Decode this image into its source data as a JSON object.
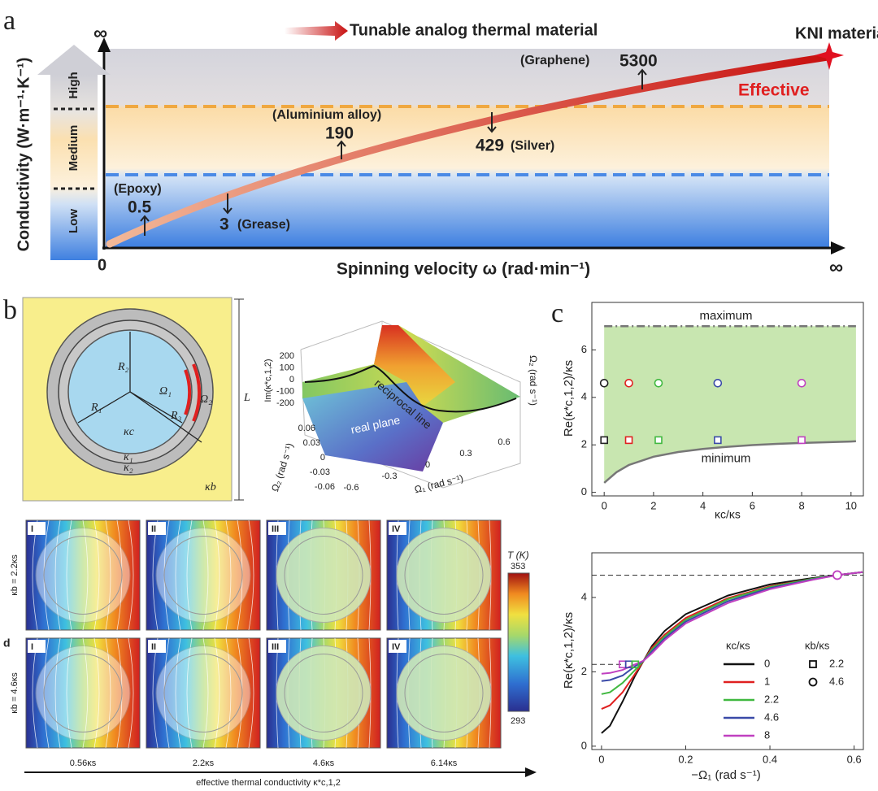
{
  "panel_a": {
    "label": "a",
    "title": "Tunable analog thermal material",
    "corner_label": "KNI material",
    "effective": "Effective",
    "y_label": "Conductivity (W·m⁻¹·K⁻¹)",
    "x_label": "Spinning velocity ω (rad·min⁻¹)",
    "origin": 0,
    "infinity_y": "∞",
    "infinity_x": "∞",
    "levels": [
      "High",
      "Medium",
      "Low"
    ],
    "materials": [
      {
        "name": "(Graphene)",
        "value": 5300
      },
      {
        "name": "(Aluminium alloy)",
        "value": 190
      },
      {
        "name": "(Silver)",
        "value": 429
      },
      {
        "name": "(Epoxy)",
        "value": 0.5
      },
      {
        "name": "(Grease)",
        "value": 3
      }
    ]
  },
  "panel_b": {
    "label": "b",
    "schematic": {
      "R1": "R₁",
      "R2": "R₂",
      "R3": "R₃",
      "omega1": "Ω₁",
      "omega2": "Ω₂",
      "kc": "κc",
      "k1": "κ₁",
      "k2": "κ₂",
      "kb": "κb",
      "L": "L"
    },
    "surface": {
      "z_label": "Im(κ*c,1,2)",
      "line_label": "reciprocal line",
      "plane_label": "real plane",
      "x_label": "Ω₁ (rad s⁻¹)",
      "y_label": "Ω₂ (rad s⁻¹)",
      "right_label": "Ω₂ (rad s⁻¹)",
      "z_ticks": [
        200,
        100,
        0,
        -100,
        -200
      ],
      "x_ticks": [
        -0.6,
        -0.3,
        0,
        0.3,
        0.6
      ],
      "y_ticks": [
        0.06,
        0.03,
        0,
        -0.03,
        -0.06
      ]
    }
  },
  "panel_d": {
    "label": "d",
    "columns": [
      "I",
      "II",
      "III",
      "IV"
    ],
    "rows": [
      "κb = 2.2κs",
      "κb = 4.6κs"
    ],
    "colorbar_title": "T (K)",
    "colorbar_max": 353,
    "colorbar_min": 293,
    "conductivities": [
      "0.56κs",
      "2.2κs",
      "4.6κs",
      "6.14κs"
    ],
    "axis_label": "effective thermal conductivity κ*c,1,2"
  },
  "chart_data": [
    {
      "type": "scatter",
      "label": "c",
      "x_label": "κc/κs",
      "y_label": "Re(κ*c,1,2)/κs",
      "xlim": [
        -0.5,
        10.5
      ],
      "ylim": [
        -0.15,
        8
      ],
      "xticks": [
        0,
        2,
        4,
        6,
        8,
        10
      ],
      "yticks": [
        0,
        2,
        4,
        6
      ],
      "maximum": {
        "label": "maximum",
        "value": 7
      },
      "minimum": {
        "label": "minimum",
        "x": [
          0,
          0.5,
          1,
          2,
          3,
          4,
          5,
          6,
          7,
          8,
          9,
          10,
          10.2
        ],
        "values": [
          0.4,
          0.85,
          1.15,
          1.5,
          1.7,
          1.83,
          1.92,
          1.99,
          2.04,
          2.08,
          2.11,
          2.14,
          2.15
        ]
      },
      "x": [
        0,
        1,
        2.2,
        4.6,
        8
      ],
      "colors": [
        "#222222",
        "#e02020",
        "#40b840",
        "#3a4aa8",
        "#c040c0"
      ],
      "circle_values": [
        4.6,
        4.6,
        4.6,
        4.6,
        4.6
      ],
      "square_values": [
        2.2,
        2.2,
        2.2,
        2.2,
        2.2
      ],
      "fill_color": "#c8e6b0"
    },
    {
      "type": "line",
      "x_label": "−Ω₁ (rad s⁻¹)",
      "y_label": "Re(κ*c,1,2)/κs",
      "xlim": [
        -0.023,
        0.622
      ],
      "ylim": [
        -0.09,
        5.2
      ],
      "xticks": [
        0,
        0.2,
        0.4,
        0.6
      ],
      "yticks": [
        0,
        2,
        4
      ],
      "x": [
        0,
        0.02,
        0.05,
        0.08,
        0.1,
        0.12,
        0.15,
        0.2,
        0.3,
        0.4,
        0.5,
        0.56,
        0.62
      ],
      "legend_title": "κc/κs",
      "series": [
        {
          "name": "0",
          "color": "#111111",
          "values": [
            0.35,
            0.55,
            1.2,
            1.9,
            2.3,
            2.7,
            3.1,
            3.55,
            4.05,
            4.35,
            4.52,
            4.6,
            4.68
          ]
        },
        {
          "name": "1",
          "color": "#e02020",
          "values": [
            1.0,
            1.1,
            1.45,
            1.95,
            2.3,
            2.65,
            3.0,
            3.45,
            3.98,
            4.3,
            4.5,
            4.6,
            4.68
          ]
        },
        {
          "name": "2.2",
          "color": "#40b840",
          "values": [
            1.4,
            1.45,
            1.7,
            2.05,
            2.3,
            2.6,
            2.95,
            3.4,
            3.95,
            4.28,
            4.5,
            4.6,
            4.68
          ]
        },
        {
          "name": "4.6",
          "color": "#3a4aa8",
          "values": [
            1.75,
            1.78,
            1.9,
            2.15,
            2.3,
            2.55,
            2.9,
            3.35,
            3.9,
            4.25,
            4.48,
            4.6,
            4.68
          ]
        },
        {
          "name": "8",
          "color": "#c040c0",
          "values": [
            1.95,
            1.97,
            2.05,
            2.2,
            2.3,
            2.5,
            2.85,
            3.3,
            3.85,
            4.22,
            4.47,
            4.6,
            4.68
          ]
        }
      ],
      "marker_legend_title": "κb/κs",
      "markers": [
        {
          "name": "2.2",
          "shape": "square",
          "x": [
            0.05,
            0.065,
            0.08
          ],
          "values": [
            2.2,
            2.2,
            2.2
          ],
          "colors": [
            "#c040c0",
            "#3a4aa8",
            "#40b840"
          ]
        },
        {
          "name": "4.6",
          "shape": "circle",
          "x": [
            0.56
          ],
          "values": [
            4.6
          ],
          "colors": [
            "#c040c0"
          ]
        }
      ],
      "reference_lines": [
        4.6,
        2.2
      ]
    }
  ]
}
